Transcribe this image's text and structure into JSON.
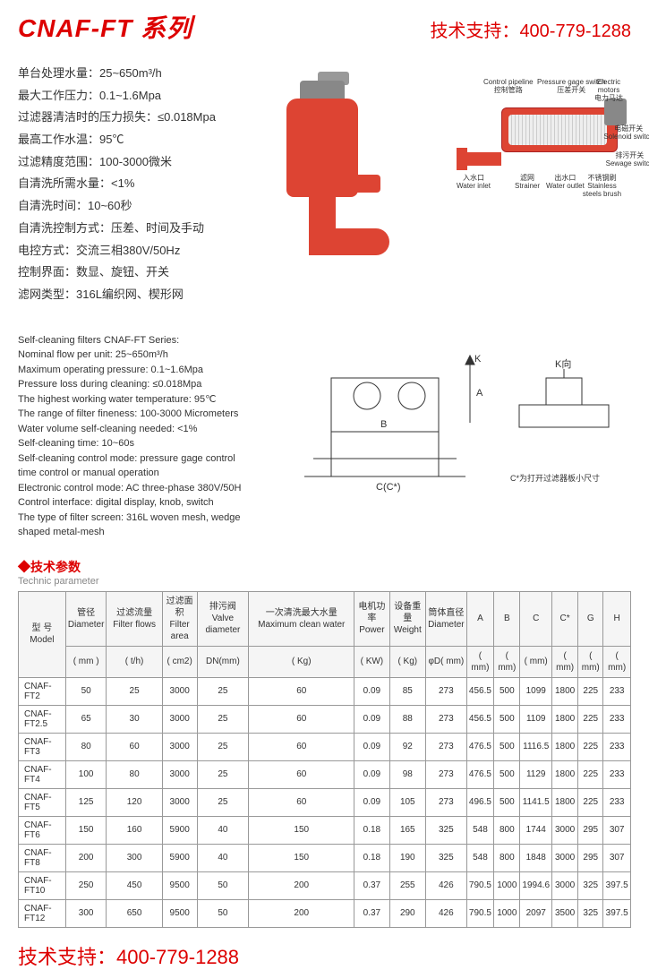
{
  "header": {
    "title_main": "CNAF-FT 系列",
    "support_label": "技术支持：",
    "support_phone": "400-779-1288"
  },
  "specs_cn": [
    "单台处理水量：25~650m³/h",
    "最大工作压力：0.1~1.6Mpa",
    "过滤器清洁时的压力损失：≤0.018Mpa",
    "最高工作水温：95℃",
    "过滤精度范围：100-3000微米",
    "自清洗所需水量：<1%",
    "自清洗时间：10~60秒",
    "自清洗控制方式：压差、时间及手动",
    "电控方式：交流三相380V/50Hz",
    "控制界面：数显、旋钮、开关",
    "滤网类型：316L编织网、楔形网"
  ],
  "specs_en": [
    "Self-cleaning filters CNAF-FT Series:",
    "Nominal flow per unit: 25~650m³/h",
    "Maximum operating pressure: 0.1~1.6Mpa",
    "Pressure loss during cleaning: ≤0.018Mpa",
    "The highest working water temperature: 95℃",
    "The range of filter fineness: 100-3000 Micrometers",
    "Water volume self-cleaning needed: <1%",
    "Self-cleaning time: 10~60s",
    "Self-cleaning control mode: pressure gage control",
    "time control or manual operation",
    "Electronic control mode: AC three-phase 380V/50H",
    "Control interface: digital display, knob, switch",
    "The type of filter screen: 316L woven mesh, wedge",
    "shaped metal-mesh"
  ],
  "diagram_labels": {
    "control_pipeline": {
      "cn": "控制管路",
      "en": "Control pipeline"
    },
    "pressure_gage": {
      "cn": "压差开关",
      "en": "Pressure gage switch"
    },
    "electric_motors": {
      "cn": "电力马达",
      "en": "Electric motors"
    },
    "solenoid": {
      "cn": "电磁开关",
      "en": "Solenoid switch"
    },
    "sewage": {
      "cn": "排污开关",
      "en": "Sewage switch"
    },
    "water_inlet": {
      "cn": "入水口",
      "en": "Water inlet"
    },
    "strainer": {
      "cn": "滤网",
      "en": "Strainer"
    },
    "water_outlet": {
      "cn": "出水口",
      "en": "Water outlet"
    },
    "steel_brush": {
      "cn": "不锈钢刷",
      "en": "Stainless steels brush"
    }
  },
  "tech_diagram": {
    "k_label": "K",
    "a_label": "A",
    "b_label": "B",
    "c_label": "C(C*)",
    "k_direction": "K向",
    "note": "C*为打开过滤器板小尺寸"
  },
  "section": {
    "title_cn": "◆技术参数",
    "title_en": "Technic parameter"
  },
  "table": {
    "headers": [
      {
        "cn": "型 号Model",
        "unit": ""
      },
      {
        "cn": "管径\nDiameter",
        "unit": "( mm )"
      },
      {
        "cn": "过滤流量 Filter flows",
        "unit": "( t/h)"
      },
      {
        "cn": "过滤面积\nFilter area",
        "unit": "( cm2)"
      },
      {
        "cn": "排污阀\nValve diameter",
        "unit": "DN(mm)"
      },
      {
        "cn": "一次清洗最大水量 Maximum clean water",
        "unit": "( Kg)"
      },
      {
        "cn": "电机功率\nPower",
        "unit": "( KW)"
      },
      {
        "cn": "设备重量\nWeight",
        "unit": "( Kg)"
      },
      {
        "cn": "筒体直径\nDiameter",
        "unit": "φD( mm)"
      },
      {
        "cn": "A",
        "unit": "( mm)"
      },
      {
        "cn": "B",
        "unit": "( mm)"
      },
      {
        "cn": "C",
        "unit": "( mm)"
      },
      {
        "cn": "C*",
        "unit": "( mm)"
      },
      {
        "cn": "G",
        "unit": "( mm)"
      },
      {
        "cn": "H",
        "unit": "( mm)"
      }
    ],
    "rows": [
      [
        "CNAF-FT2",
        "50",
        "25",
        "3000",
        "25",
        "60",
        "0.09",
        "85",
        "273",
        "456.5",
        "500",
        "1099",
        "1800",
        "225",
        "233"
      ],
      [
        "CNAF-FT2.5",
        "65",
        "30",
        "3000",
        "25",
        "60",
        "0.09",
        "88",
        "273",
        "456.5",
        "500",
        "1109",
        "1800",
        "225",
        "233"
      ],
      [
        "CNAF-FT3",
        "80",
        "60",
        "3000",
        "25",
        "60",
        "0.09",
        "92",
        "273",
        "476.5",
        "500",
        "1116.5",
        "1800",
        "225",
        "233"
      ],
      [
        "CNAF-FT4",
        "100",
        "80",
        "3000",
        "25",
        "60",
        "0.09",
        "98",
        "273",
        "476.5",
        "500",
        "1129",
        "1800",
        "225",
        "233"
      ],
      [
        "CNAF-FT5",
        "125",
        "120",
        "3000",
        "25",
        "60",
        "0.09",
        "105",
        "273",
        "496.5",
        "500",
        "1141.5",
        "1800",
        "225",
        "233"
      ],
      [
        "CNAF-FT6",
        "150",
        "160",
        "5900",
        "40",
        "150",
        "0.18",
        "165",
        "325",
        "548",
        "800",
        "1744",
        "3000",
        "295",
        "307"
      ],
      [
        "CNAF-FT8",
        "200",
        "300",
        "5900",
        "40",
        "150",
        "0.18",
        "190",
        "325",
        "548",
        "800",
        "1848",
        "3000",
        "295",
        "307"
      ],
      [
        "CNAF-FT10",
        "250",
        "450",
        "9500",
        "50",
        "200",
        "0.37",
        "255",
        "426",
        "790.5",
        "1000",
        "1994.6",
        "3000",
        "325",
        "397.5"
      ],
      [
        "CNAF-FT12",
        "300",
        "650",
        "9500",
        "50",
        "200",
        "0.37",
        "290",
        "426",
        "790.5",
        "1000",
        "2097",
        "3500",
        "325",
        "397.5"
      ]
    ]
  },
  "footer": {
    "support_label": "技术支持：",
    "support_phone": "400-779-1288"
  },
  "colors": {
    "brand_red": "#dd0000",
    "filter_orange": "#d44433",
    "text": "#333333",
    "border": "#999999"
  }
}
